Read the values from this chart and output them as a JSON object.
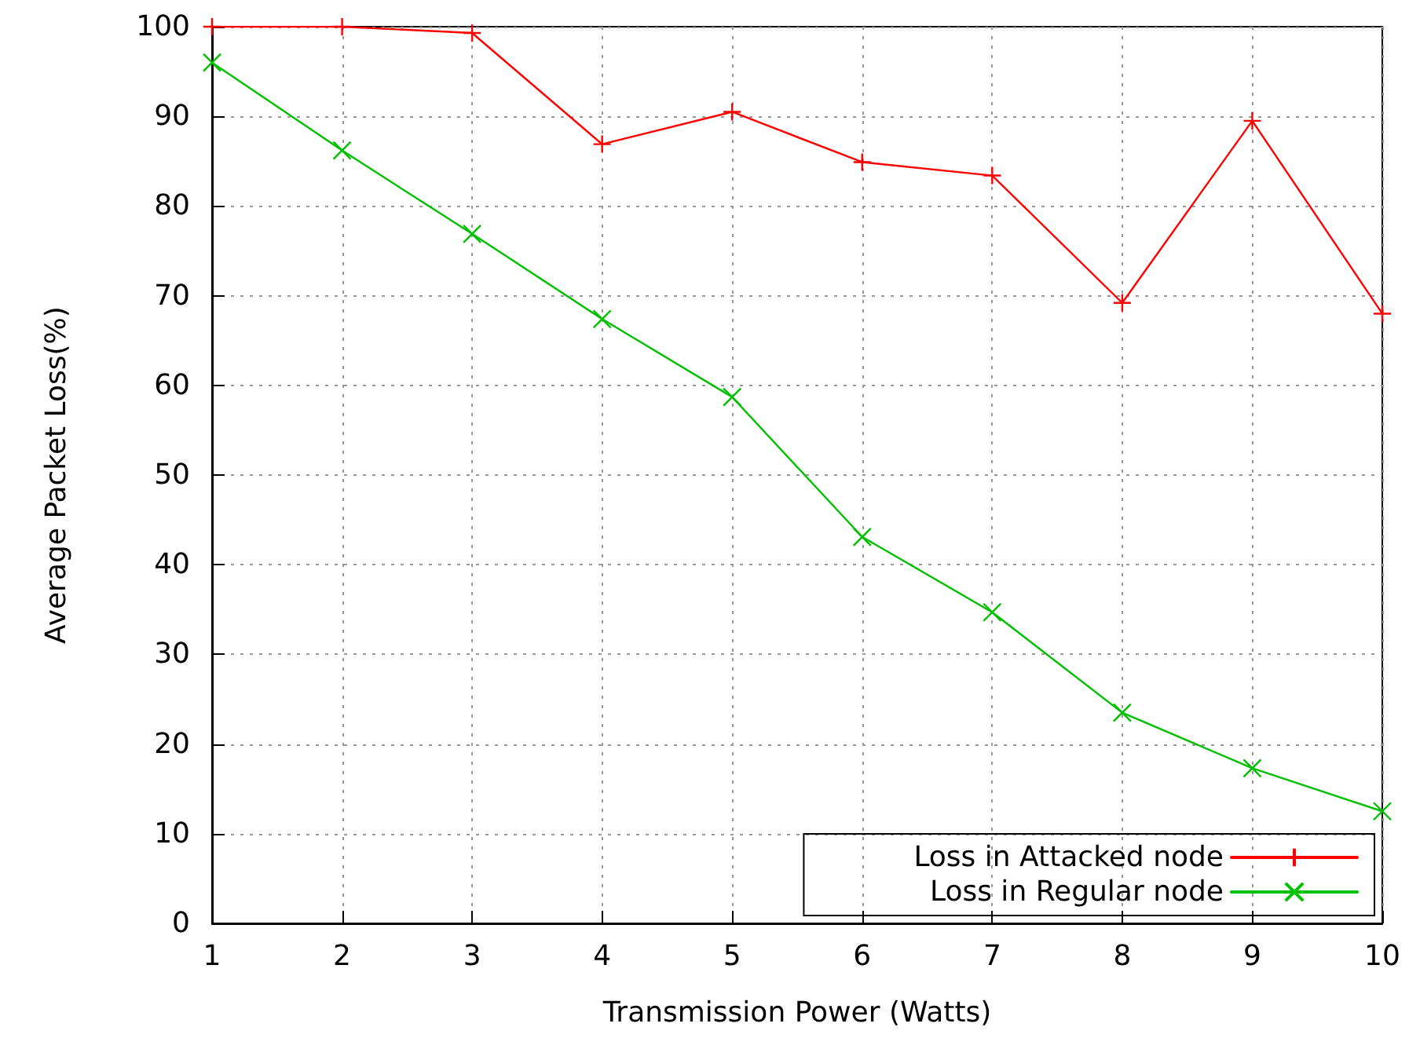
{
  "chart_data": {
    "type": "line",
    "xlabel": "Transmission Power (Watts)",
    "ylabel": "Average Packet Loss(%)",
    "x": [
      1,
      2,
      3,
      4,
      5,
      6,
      7,
      8,
      9,
      10
    ],
    "series": [
      {
        "name": "Loss in Attacked node",
        "color": "#ff0000",
        "marker": "plus",
        "values": [
          100,
          100,
          99.3,
          86.9,
          90.5,
          84.9,
          83.4,
          69.2,
          89.5,
          68
        ]
      },
      {
        "name": "Loss in Regular node",
        "color": "#00c000",
        "marker": "cross",
        "values": [
          96,
          86.2,
          76.9,
          67.4,
          58.7,
          43.1,
          34.7,
          23.5,
          17.3,
          12.5
        ]
      }
    ],
    "xlim": [
      1,
      10
    ],
    "xticks": [
      1,
      2,
      3,
      4,
      5,
      6,
      7,
      8,
      9,
      10
    ],
    "ylim": [
      0,
      100
    ],
    "yticks": [
      0,
      10,
      20,
      30,
      40,
      50,
      60,
      70,
      80,
      90,
      100
    ],
    "grid": true,
    "legend": "bottom right",
    "line_style": "solid"
  }
}
